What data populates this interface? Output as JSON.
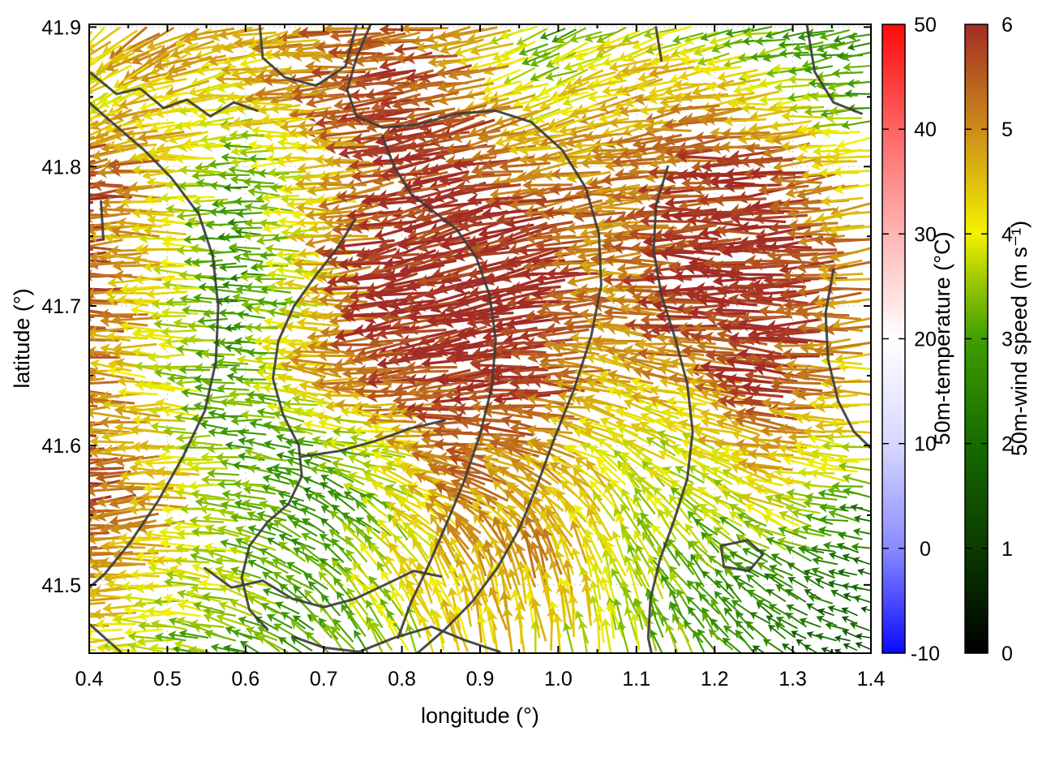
{
  "figure": {
    "background": "#ffffff",
    "border_color": "#000000",
    "grid_color": "#b4b4b4",
    "contour_color": "#3c3c3c",
    "x_axis": {
      "label": "longitude (°)",
      "min": 0.4,
      "max": 1.4,
      "ticks": [
        0.4,
        0.5,
        0.6,
        0.7,
        0.8,
        0.9,
        1.0,
        1.1,
        1.2,
        1.3,
        1.4
      ]
    },
    "y_axis": {
      "label": "latitude (°)",
      "min": 41.451,
      "max": 41.902,
      "ticks": [
        41.5,
        41.6,
        41.7,
        41.8,
        41.9
      ]
    },
    "colorbars": [
      {
        "title": "50m-temperature (°C)",
        "min": -10,
        "max": 50,
        "ticks": [
          50,
          40,
          30,
          20,
          10,
          0,
          -10
        ],
        "stops": [
          [
            -10,
            "#0a0aff"
          ],
          [
            0,
            "#8a8aff"
          ],
          [
            10,
            "#d8d8ff"
          ],
          [
            20,
            "#ffffff"
          ],
          [
            30,
            "#ffb4b4"
          ],
          [
            40,
            "#ff6464"
          ],
          [
            50,
            "#ff0a0a"
          ]
        ]
      },
      {
        "title": "50m-wind speed (m s⁻¹)",
        "min": 0,
        "max": 6,
        "ticks": [
          6,
          5,
          4,
          3,
          2,
          1,
          0
        ],
        "stops": [
          [
            0,
            "#000000"
          ],
          [
            1,
            "#0b3a00"
          ],
          [
            2,
            "#166b00"
          ],
          [
            3,
            "#3f9e00"
          ],
          [
            3.6,
            "#a6cc00"
          ],
          [
            4,
            "#f2f200"
          ],
          [
            5,
            "#cc8c1a"
          ],
          [
            6,
            "#a32c26"
          ]
        ]
      }
    ]
  },
  "chart_data": {
    "type": "quiver",
    "title": "",
    "xlabel": "longitude (°)",
    "ylabel": "latitude (°)",
    "xlim": [
      0.4,
      1.4
    ],
    "ylim": [
      41.451,
      41.902
    ],
    "grid": "dotted at major ticks",
    "arrow_color_encodes": "50m-wind speed (m s⁻¹), 0–6",
    "background_color_encodes": "50m-temperature (°C), -10–50, field ~20 °C (white)",
    "colormap_speed": [
      [
        0,
        "#000000"
      ],
      [
        1,
        "#0b3a00"
      ],
      [
        2,
        "#166b00"
      ],
      [
        3,
        "#3f9e00"
      ],
      [
        3.6,
        "#a6cc00"
      ],
      [
        4,
        "#f2f200"
      ],
      [
        5,
        "#cc8c1a"
      ],
      [
        6,
        "#a32c26"
      ]
    ],
    "colormap_temp": [
      [
        -10,
        "#0a0aff"
      ],
      [
        0,
        "#8a8aff"
      ],
      [
        10,
        "#d8d8ff"
      ],
      [
        20,
        "#ffffff"
      ],
      [
        30,
        "#ffb4b4"
      ],
      [
        40,
        "#ff6464"
      ],
      [
        50,
        "#ff0a0a"
      ]
    ],
    "wind_field": {
      "description": "coarse control grid estimated from figure; arrows predominantly point westward, veering northward in the south-central sector",
      "lons": [
        0.4,
        0.5,
        0.6,
        0.7,
        0.8,
        0.9,
        1.0,
        1.1,
        1.2,
        1.3,
        1.4
      ],
      "lats": [
        41.9,
        41.85,
        41.8,
        41.75,
        41.7,
        41.65,
        41.6,
        41.55,
        41.5,
        41.45
      ],
      "speed_ms": [
        [
          4.0,
          5.0,
          4.5,
          5.0,
          5.5,
          5.0,
          3.0,
          4.0,
          3.5,
          3.0,
          2.5
        ],
        [
          4.0,
          4.5,
          4.0,
          5.0,
          6.0,
          5.5,
          4.0,
          4.5,
          5.0,
          4.0,
          3.0
        ],
        [
          6.0,
          5.0,
          3.0,
          4.0,
          5.5,
          6.0,
          5.0,
          5.0,
          5.5,
          6.0,
          4.0
        ],
        [
          6.0,
          4.5,
          2.5,
          4.0,
          6.0,
          6.0,
          6.0,
          5.0,
          6.0,
          6.0,
          5.0
        ],
        [
          6.0,
          4.5,
          2.5,
          4.0,
          6.0,
          6.0,
          6.0,
          5.0,
          6.0,
          6.0,
          5.0
        ],
        [
          5.5,
          4.0,
          3.0,
          4.5,
          5.5,
          6.0,
          6.0,
          4.5,
          5.0,
          6.0,
          4.5
        ],
        [
          6.0,
          4.5,
          3.0,
          3.0,
          4.0,
          5.5,
          5.0,
          4.0,
          4.0,
          5.0,
          4.0
        ],
        [
          6.0,
          5.0,
          3.5,
          2.5,
          3.5,
          5.0,
          4.5,
          4.0,
          3.5,
          4.0,
          2.5
        ],
        [
          5.0,
          4.0,
          3.5,
          3.0,
          4.0,
          4.5,
          5.0,
          3.5,
          3.0,
          2.5,
          2.0
        ],
        [
          4.5,
          3.5,
          3.0,
          3.0,
          3.5,
          4.5,
          4.0,
          3.5,
          3.0,
          2.0,
          1.5
        ]
      ],
      "direction_deg_toward": [
        [
          225,
          210,
          195,
          185,
          185,
          190,
          205,
          200,
          195,
          190,
          195
        ],
        [
          210,
          200,
          185,
          182,
          188,
          192,
          200,
          195,
          188,
          185,
          185
        ],
        [
          188,
          182,
          180,
          180,
          190,
          192,
          188,
          184,
          182,
          185,
          188
        ],
        [
          183,
          180,
          178,
          180,
          192,
          196,
          192,
          184,
          180,
          184,
          188
        ],
        [
          180,
          178,
          178,
          176,
          188,
          192,
          188,
          178,
          175,
          180,
          184
        ],
        [
          180,
          176,
          178,
          172,
          184,
          188,
          182,
          170,
          170,
          176,
          180
        ],
        [
          184,
          180,
          176,
          166,
          172,
          180,
          168,
          152,
          162,
          172,
          176
        ],
        [
          188,
          184,
          172,
          152,
          142,
          150,
          132,
          122,
          142,
          162,
          172
        ],
        [
          184,
          180,
          166,
          142,
          122,
          112,
          102,
          112,
          132,
          152,
          166
        ],
        [
          180,
          176,
          162,
          136,
          116,
          102,
          96,
          106,
          126,
          146,
          162
        ]
      ]
    },
    "contours_lonlat": [
      [
        [
          0.4,
          41.868
        ],
        [
          0.435,
          41.852
        ],
        [
          0.465,
          41.856
        ],
        [
          0.495,
          41.842
        ],
        [
          0.525,
          41.848
        ],
        [
          0.555,
          41.836
        ],
        [
          0.585,
          41.846
        ],
        [
          0.615,
          41.84
        ]
      ],
      [
        [
          0.618,
          41.902
        ],
        [
          0.622,
          41.878
        ],
        [
          0.65,
          41.864
        ],
        [
          0.69,
          41.858
        ],
        [
          0.728,
          41.872
        ],
        [
          0.742,
          41.902
        ]
      ],
      [
        [
          0.4,
          41.846
        ],
        [
          0.42,
          41.836
        ],
        [
          0.47,
          41.812
        ],
        [
          0.505,
          41.792
        ],
        [
          0.54,
          41.766
        ],
        [
          0.558,
          41.736
        ],
        [
          0.565,
          41.7
        ],
        [
          0.562,
          41.66
        ],
        [
          0.548,
          41.625
        ],
        [
          0.52,
          41.592
        ],
        [
          0.488,
          41.56
        ],
        [
          0.452,
          41.53
        ],
        [
          0.42,
          41.508
        ],
        [
          0.4,
          41.498
        ]
      ],
      [
        [
          0.76,
          41.902
        ],
        [
          0.742,
          41.878
        ],
        [
          0.73,
          41.855
        ],
        [
          0.742,
          41.836
        ],
        [
          0.775,
          41.828
        ],
        [
          0.82,
          41.83
        ],
        [
          0.87,
          41.838
        ],
        [
          0.92,
          41.84
        ],
        [
          0.965,
          41.832
        ],
        [
          1.005,
          41.812
        ],
        [
          1.035,
          41.785
        ],
        [
          1.052,
          41.752
        ],
        [
          1.055,
          41.715
        ],
        [
          1.042,
          41.678
        ],
        [
          1.02,
          41.64
        ],
        [
          0.995,
          41.605
        ],
        [
          0.972,
          41.57
        ],
        [
          0.95,
          41.54
        ],
        [
          0.922,
          41.512
        ],
        [
          0.89,
          41.488
        ],
        [
          0.855,
          41.468
        ],
        [
          0.822,
          41.452
        ],
        [
          0.8,
          41.444
        ]
      ],
      [
        [
          0.775,
          41.822
        ],
        [
          0.79,
          41.8
        ],
        [
          0.812,
          41.78
        ],
        [
          0.84,
          41.768
        ],
        [
          0.87,
          41.755
        ],
        [
          0.895,
          41.735
        ],
        [
          0.912,
          41.708
        ],
        [
          0.92,
          41.676
        ],
        [
          0.915,
          41.642
        ],
        [
          0.9,
          41.608
        ],
        [
          0.88,
          41.575
        ],
        [
          0.858,
          41.545
        ],
        [
          0.835,
          41.515
        ],
        [
          0.812,
          41.488
        ],
        [
          0.795,
          41.462
        ]
      ],
      [
        [
          0.74,
          41.762
        ],
        [
          0.718,
          41.742
        ],
        [
          0.69,
          41.722
        ],
        [
          0.662,
          41.7
        ],
        [
          0.642,
          41.675
        ],
        [
          0.635,
          41.648
        ],
        [
          0.648,
          41.622
        ],
        [
          0.668,
          41.6
        ],
        [
          0.672,
          41.578
        ],
        [
          0.655,
          41.558
        ],
        [
          0.628,
          41.545
        ],
        [
          0.605,
          41.528
        ],
        [
          0.595,
          41.505
        ],
        [
          0.605,
          41.482
        ],
        [
          0.628,
          41.468
        ]
      ],
      [
        [
          1.14,
          41.8
        ],
        [
          1.125,
          41.772
        ],
        [
          1.122,
          41.74
        ],
        [
          1.132,
          41.708
        ],
        [
          1.15,
          41.676
        ],
        [
          1.165,
          41.644
        ],
        [
          1.172,
          41.61
        ],
        [
          1.165,
          41.576
        ],
        [
          1.148,
          41.546
        ],
        [
          1.13,
          41.518
        ],
        [
          1.118,
          41.49
        ],
        [
          1.115,
          41.462
        ],
        [
          1.122,
          41.444
        ]
      ],
      [
        [
          1.352,
          41.726
        ],
        [
          1.342,
          41.695
        ],
        [
          1.345,
          41.662
        ],
        [
          1.358,
          41.632
        ],
        [
          1.378,
          41.61
        ],
        [
          1.4,
          41.598
        ]
      ],
      [
        [
          0.548,
          41.512
        ],
        [
          0.582,
          41.498
        ],
        [
          0.622,
          41.503
        ],
        [
          0.66,
          41.49
        ],
        [
          0.7,
          41.484
        ],
        [
          0.74,
          41.49
        ],
        [
          0.778,
          41.5
        ],
        [
          0.815,
          41.51
        ],
        [
          0.85,
          41.506
        ]
      ],
      [
        [
          0.66,
          41.463
        ],
        [
          0.7,
          41.455
        ],
        [
          0.745,
          41.452
        ],
        [
          0.79,
          41.462
        ],
        [
          0.838,
          41.47
        ],
        [
          0.882,
          41.46
        ],
        [
          0.925,
          41.452
        ]
      ],
      [
        [
          1.208,
          41.528
        ],
        [
          1.242,
          41.532
        ],
        [
          1.262,
          41.522
        ],
        [
          1.244,
          41.51
        ],
        [
          1.212,
          41.513
        ],
        [
          1.208,
          41.528
        ]
      ],
      [
        [
          1.318,
          41.902
        ],
        [
          1.328,
          41.868
        ],
        [
          1.352,
          41.846
        ],
        [
          1.388,
          41.838
        ]
      ],
      [
        [
          1.125,
          41.9
        ],
        [
          1.132,
          41.876
        ]
      ],
      [
        [
          0.415,
          41.775
        ],
        [
          0.418,
          41.748
        ]
      ],
      [
        [
          0.4,
          41.472
        ],
        [
          0.428,
          41.458
        ],
        [
          0.452,
          41.446
        ]
      ],
      [
        [
          0.672,
          41.592
        ],
        [
          0.72,
          41.596
        ],
        [
          0.765,
          41.603
        ],
        [
          0.81,
          41.612
        ],
        [
          0.855,
          41.618
        ]
      ]
    ]
  }
}
